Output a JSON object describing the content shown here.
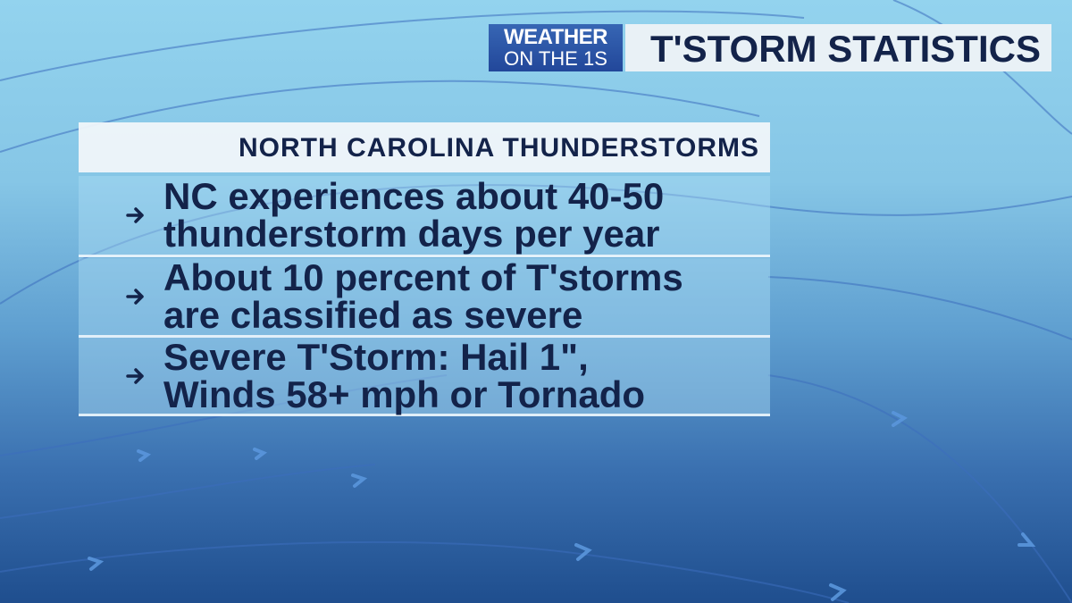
{
  "logo": {
    "line1": "WEATHER",
    "line2": "ON THE 1S"
  },
  "header": {
    "title": "T'STORM STATISTICS"
  },
  "panel": {
    "title": "NORTH CAROLINA THUNDERSTORMS",
    "items": [
      {
        "lines": [
          "NC experiences about 40-50",
          "thunderstorm days per year"
        ]
      },
      {
        "lines": [
          "About 10 percent of T'storms",
          "are classified as severe"
        ]
      },
      {
        "lines": [
          "Severe T'Storm: Hail 1\",",
          "Winds 58+ mph or Tornado"
        ]
      }
    ]
  }
}
